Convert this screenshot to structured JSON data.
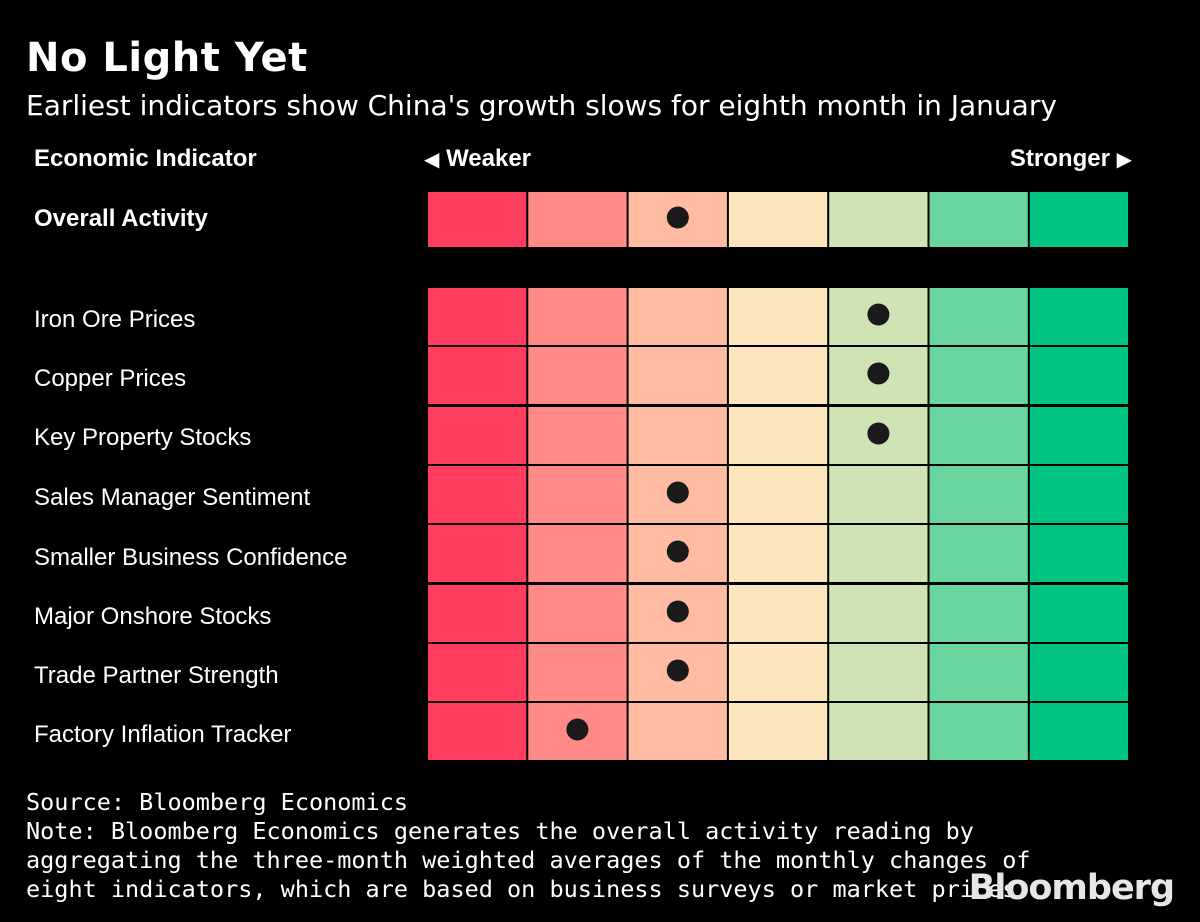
{
  "header": {
    "title": "No Light Yet",
    "subtitle": "Earliest indicators show China's growth slows for eighth month in January"
  },
  "columns": {
    "indicator": "Economic Indicator",
    "weaker": "Weaker",
    "weaker_arrow": "◀",
    "stronger": "Stronger",
    "stronger_arrow": "▶"
  },
  "colors": {
    "scale": [
      "#ff3d5e",
      "#ff8a87",
      "#ffbca3",
      "#fde6bd",
      "#cfe4b4",
      "#69d69e",
      "#00c582"
    ],
    "dot": "#1a1a1a",
    "background": "#000000"
  },
  "chart_data": {
    "type": "heatmap",
    "title": "No Light Yet",
    "subtitle": "Earliest indicators show China's growth slows for eighth month in January",
    "scale_levels": 7,
    "scale_label_low": "Weaker",
    "scale_label_high": "Stronger",
    "summary": {
      "name": "Overall Activity",
      "level": 3
    },
    "indicators": [
      {
        "name": "Iron Ore Prices",
        "level": 5
      },
      {
        "name": "Copper Prices",
        "level": 5
      },
      {
        "name": "Key Property Stocks",
        "level": 5
      },
      {
        "name": "Sales Manager Sentiment",
        "level": 3
      },
      {
        "name": "Smaller Business Confidence",
        "level": 3
      },
      {
        "name": "Major Onshore Stocks",
        "level": 3
      },
      {
        "name": "Trade Partner Strength",
        "level": 3
      },
      {
        "name": "Factory Inflation Tracker",
        "level": 2
      }
    ]
  },
  "footer": {
    "source": "Source: Bloomberg Economics",
    "note_1": "Note: Bloomberg Economics generates the overall activity reading by",
    "note_2": "aggregating the three-month weighted averages of the monthly changes of",
    "note_3": "eight indicators, which are based on business surveys or market prices."
  },
  "brand": {
    "logo": "Bloomberg"
  }
}
